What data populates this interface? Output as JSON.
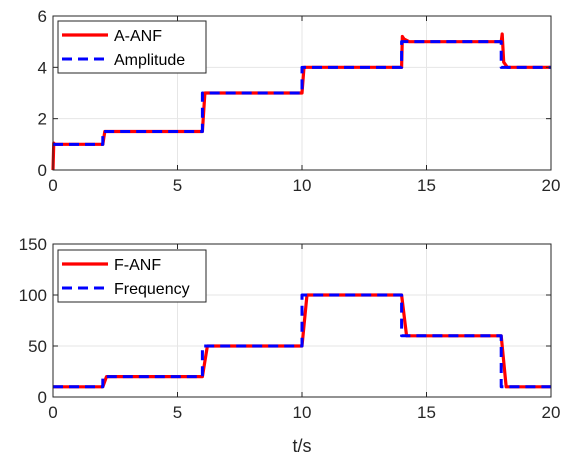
{
  "colors": {
    "red": "#ff0000",
    "blue": "#0000ff",
    "grid": "#e6e6e6",
    "axis": "#262626"
  },
  "chart_data": [
    {
      "type": "line",
      "title": "",
      "xlabel": "",
      "ylabel": "",
      "xlim": [
        0,
        20
      ],
      "ylim": [
        0,
        6
      ],
      "xticks": [
        "0",
        "5",
        "10",
        "15",
        "20"
      ],
      "yticks": [
        "0",
        "2",
        "4",
        "6"
      ],
      "grid": true,
      "legend_position": "top-left",
      "series": [
        {
          "name": "A-ANF",
          "color": "#ff0000",
          "style": "solid",
          "x": [
            0,
            0.03,
            0.06,
            2,
            2.08,
            6,
            6.1,
            10,
            10.08,
            14,
            14.03,
            14.1,
            14.3,
            18,
            18.04,
            18.1,
            18.25,
            20
          ],
          "y": [
            0,
            1.05,
            1,
            1,
            1.5,
            1.5,
            3,
            3,
            4,
            4,
            5.2,
            5.1,
            5,
            5,
            5.3,
            4.2,
            4,
            4
          ]
        },
        {
          "name": "Amplitude",
          "color": "#0000ff",
          "style": "dashed",
          "x": [
            0,
            2,
            2,
            6,
            6,
            10,
            10,
            14,
            14,
            18,
            18,
            20
          ],
          "y": [
            1,
            1,
            1.5,
            1.5,
            3,
            3,
            4,
            4,
            5,
            5,
            4,
            4
          ]
        }
      ]
    },
    {
      "type": "line",
      "title": "",
      "xlabel": "t/s",
      "ylabel": "",
      "xlim": [
        0,
        20
      ],
      "ylim": [
        0,
        150
      ],
      "xticks": [
        "0",
        "5",
        "10",
        "15",
        "20"
      ],
      "yticks": [
        "0",
        "50",
        "100",
        "150"
      ],
      "grid": true,
      "legend_position": "top-left",
      "series": [
        {
          "name": "F-ANF",
          "color": "#ff0000",
          "style": "solid",
          "x": [
            0,
            2,
            2.15,
            6,
            6.2,
            10,
            10.2,
            14,
            14.2,
            18,
            18.2,
            20
          ],
          "y": [
            10,
            10,
            20,
            20,
            50,
            50,
            100,
            100,
            60,
            60,
            10,
            10
          ]
        },
        {
          "name": "Frequency",
          "color": "#0000ff",
          "style": "dashed",
          "x": [
            0,
            2,
            2,
            6,
            6,
            10,
            10,
            14,
            14,
            18,
            18,
            20
          ],
          "y": [
            10,
            10,
            20,
            20,
            50,
            50,
            100,
            100,
            60,
            60,
            10,
            10
          ]
        }
      ]
    }
  ]
}
